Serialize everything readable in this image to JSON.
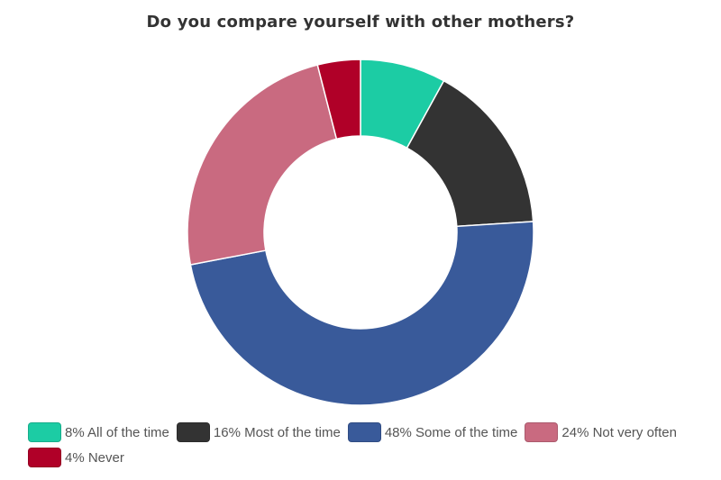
{
  "chart_data": {
    "type": "pie",
    "variant": "donut",
    "title": "Do you compare yourself with other mothers?",
    "categories": [
      "All of the time",
      "Most of the time",
      "Some of the time",
      "Not very often",
      "Never"
    ],
    "values": [
      8,
      16,
      48,
      24,
      4
    ],
    "unit": "%",
    "colors": [
      "#1ccca4",
      "#333333",
      "#395a9a",
      "#c96a80",
      "#b00028"
    ],
    "legend": {
      "placement": "bottom",
      "entries": [
        {
          "label": "8% All of the time",
          "color": "#1ccca4"
        },
        {
          "label": "16% Most of the time",
          "color": "#333333"
        },
        {
          "label": "48% Some of the time",
          "color": "#395a9a"
        },
        {
          "label": "24% Not very often",
          "color": "#c96a80"
        },
        {
          "label": "4% Never",
          "color": "#b00028"
        }
      ]
    }
  }
}
